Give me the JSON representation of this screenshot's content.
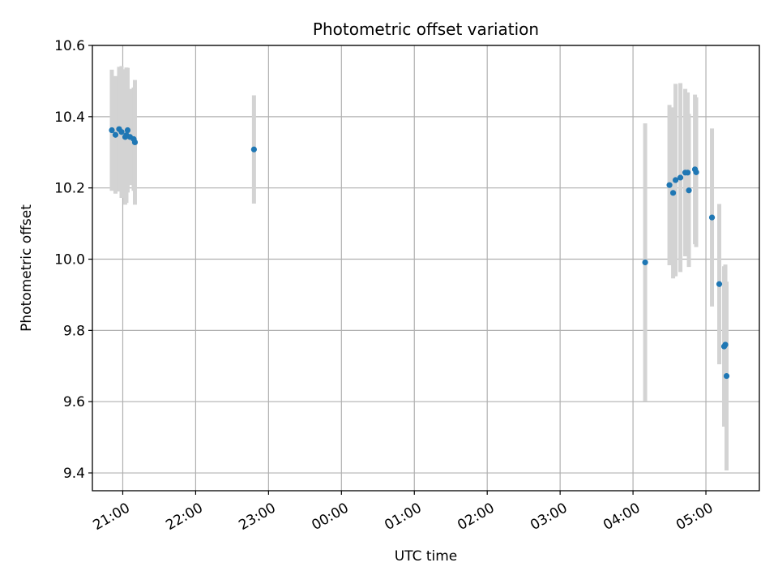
{
  "chart_data": {
    "type": "scatter",
    "title": "Photometric offset variation",
    "xlabel": "UTC time",
    "ylabel": "Photometric offset",
    "x_axis": {
      "kind": "time",
      "range": [
        "20:35",
        "05:44"
      ],
      "tick_hours": [
        21,
        22,
        23,
        0,
        1,
        2,
        3,
        4,
        5
      ],
      "tick_labels": [
        "21:00",
        "22:00",
        "23:00",
        "00:00",
        "01:00",
        "02:00",
        "03:00",
        "04:00",
        "05:00"
      ]
    },
    "ylim": [
      9.35,
      10.6
    ],
    "y_ticks": [
      9.4,
      9.6,
      9.8,
      10.0,
      10.2,
      10.4,
      10.6
    ],
    "y_tick_labels": [
      "9.4",
      "9.6",
      "9.8",
      "10.0",
      "10.2",
      "10.4",
      "10.6"
    ],
    "grid": true,
    "point_color": "#1f77b4",
    "errorbar_color": "#d3d3d3",
    "points": [
      {
        "time": "20:51",
        "y": 10.362,
        "err": 0.17
      },
      {
        "time": "20:54",
        "y": 10.349,
        "err": 0.165
      },
      {
        "time": "20:57",
        "y": 10.365,
        "err": 0.175
      },
      {
        "time": "20:59",
        "y": 10.357,
        "err": 0.185
      },
      {
        "time": "21:02",
        "y": 10.343,
        "err": 0.19
      },
      {
        "time": "21:04",
        "y": 10.362,
        "err": 0.175
      },
      {
        "time": "21:03",
        "y": 10.348,
        "err": 0.19
      },
      {
        "time": "21:06",
        "y": 10.343,
        "err": 0.135
      },
      {
        "time": "21:09",
        "y": 10.337,
        "err": 0.145
      },
      {
        "time": "21:10",
        "y": 10.328,
        "err": 0.175
      },
      {
        "time": "22:48",
        "y": 10.308,
        "err": 0.152
      },
      {
        "time": "04:10",
        "y": 9.991,
        "err": 0.39
      },
      {
        "time": "04:30",
        "y": 10.208,
        "err": 0.225
      },
      {
        "time": "04:33",
        "y": 10.186,
        "err": 0.24
      },
      {
        "time": "04:35",
        "y": 10.222,
        "err": 0.27
      },
      {
        "time": "04:39",
        "y": 10.229,
        "err": 0.265
      },
      {
        "time": "04:43",
        "y": 10.243,
        "err": 0.235
      },
      {
        "time": "04:45",
        "y": 10.243,
        "err": 0.225
      },
      {
        "time": "04:46",
        "y": 10.193,
        "err": 0.215
      },
      {
        "time": "04:51",
        "y": 10.252,
        "err": 0.21
      },
      {
        "time": "04:52",
        "y": 10.244,
        "err": 0.21
      },
      {
        "time": "05:05",
        "y": 10.117,
        "err": 0.25
      },
      {
        "time": "05:11",
        "y": 9.93,
        "err": 0.225
      },
      {
        "time": "05:15",
        "y": 9.755,
        "err": 0.225
      },
      {
        "time": "05:16",
        "y": 9.76,
        "err": 0.225
      },
      {
        "time": "05:17",
        "y": 9.672,
        "err": 0.265
      }
    ]
  }
}
